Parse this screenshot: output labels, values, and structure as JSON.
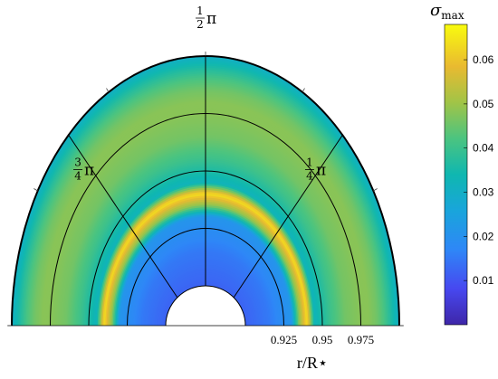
{
  "chart_data": {
    "type": "heatmap",
    "projection": "polar-half-disc",
    "theta_range": [
      0,
      3.14159
    ],
    "r_range": [
      0.9,
      1.0
    ],
    "r_ticks": [
      0.925,
      0.95,
      0.975
    ],
    "r_tick_labels": [
      "0.925",
      "0.95",
      "0.975"
    ],
    "xlabel": "r/R⋆",
    "angle_labels": [
      {
        "theta": 1.5708,
        "num": "1",
        "den": "2",
        "sym": "π"
      },
      {
        "theta": 0.7854,
        "num": "1",
        "den": "4",
        "sym": "π"
      },
      {
        "theta": 2.3562,
        "num": "3",
        "den": "4",
        "sym": "π"
      }
    ],
    "colorbar": {
      "title": "σ",
      "title_sub": "max",
      "min": 0.0,
      "max": 0.068,
      "ticks": [
        0.01,
        0.02,
        0.03,
        0.04,
        0.05,
        0.06
      ],
      "tick_labels": [
        "0.01",
        "0.02",
        "0.03",
        "0.04",
        "0.05",
        "0.06"
      ],
      "colormap": "parula"
    },
    "radial_profile": {
      "r": [
        0.9,
        0.905,
        0.91,
        0.915,
        0.92,
        0.925,
        0.93,
        0.935,
        0.94,
        0.945,
        0.95,
        0.955,
        0.96,
        0.965,
        0.97,
        0.975,
        0.98,
        0.985,
        0.99,
        0.995,
        1.0
      ],
      "sigma_max": [
        0.012,
        0.013,
        0.014,
        0.015,
        0.017,
        0.019,
        0.021,
        0.048,
        0.064,
        0.032,
        0.036,
        0.04,
        0.043,
        0.046,
        0.047,
        0.048,
        0.048,
        0.046,
        0.042,
        0.036,
        0.03
      ]
    },
    "grid": true
  }
}
